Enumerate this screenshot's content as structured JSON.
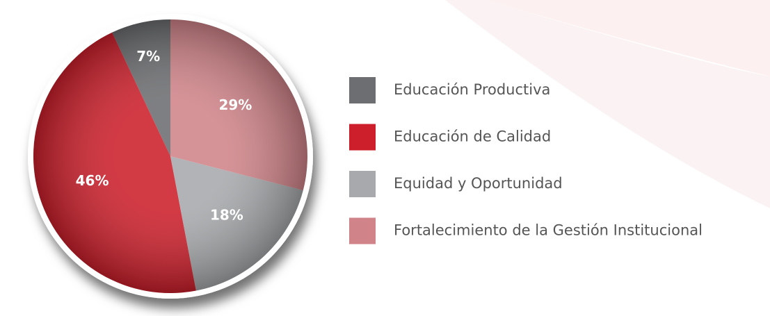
{
  "chart_data": {
    "type": "pie",
    "categories": [
      "Educación Productiva",
      "Educación de Calidad",
      "Equidad y Oportunidad",
      "Fortalecimiento de la Gestión Institucional"
    ],
    "values": [
      7,
      46,
      18,
      29
    ],
    "value_labels": [
      "7%",
      "46%",
      "18%",
      "29%"
    ],
    "colors": [
      "#6d6e71",
      "#cc1f2b",
      "#a7a9ac",
      "#d08489"
    ],
    "legend": "right"
  }
}
